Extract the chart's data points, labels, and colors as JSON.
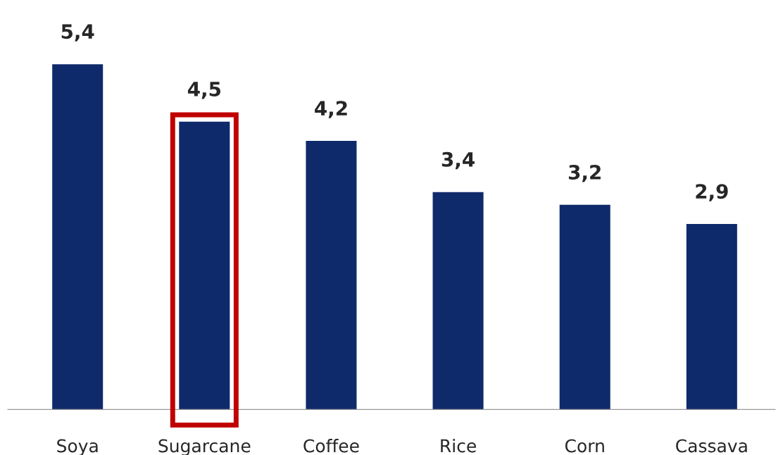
{
  "chart_data": {
    "type": "bar",
    "categories": [
      "Soya",
      "Sugarcane",
      "Coffee",
      "Rice",
      "Corn",
      "Cassava"
    ],
    "values": [
      5.4,
      4.5,
      4.2,
      3.4,
      3.2,
      2.9
    ],
    "value_labels": [
      "5,4",
      "4,5",
      "4,2",
      "3,4",
      "3,2",
      "2,9"
    ],
    "color": "#0f2a6b",
    "grid": false,
    "legend": false
  }
}
